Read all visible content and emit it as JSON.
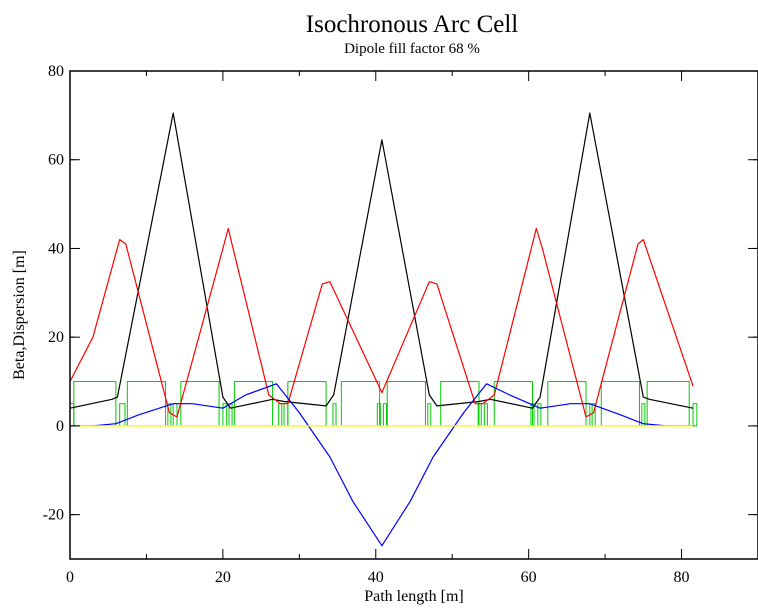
{
  "chart_data": {
    "type": "line",
    "title": "Isochronous Arc Cell",
    "subtitle": "Dipole fill factor 68 %",
    "xlabel": "Path length [m]",
    "ylabel": "Beta,Dispersion [m]",
    "xlim": [
      0,
      90
    ],
    "ylim": [
      -30,
      80
    ],
    "xticks": [
      "0",
      "20",
      "40",
      "60",
      "80"
    ],
    "xtick_values": [
      0,
      20,
      40,
      60,
      80
    ],
    "yticks": [
      "-20",
      "0",
      "20",
      "40",
      "60",
      "80"
    ],
    "ytick_values": [
      -20,
      0,
      20,
      40,
      60,
      80
    ],
    "grid": false,
    "legend": "none",
    "series": [
      {
        "color": "#000000",
        "x": [
          0,
          5.5,
          6.2,
          13.5,
          20,
          21,
          26.5,
          28,
          33.5,
          34.5,
          40.8,
          47,
          48,
          53.5,
          55,
          60.5,
          61.5,
          68,
          75,
          75.8,
          81.5
        ],
        "y": [
          4,
          6,
          6.5,
          70.5,
          6.5,
          4,
          6,
          5.5,
          4.5,
          7,
          64.5,
          7,
          4.5,
          5.5,
          6,
          4,
          6.5,
          70.5,
          6.5,
          6,
          4
        ]
      },
      {
        "color": "#ff0000",
        "x": [
          0,
          3,
          6.5,
          7.3,
          13,
          14,
          20,
          20.7,
          26,
          27.5,
          28.5,
          33,
          34,
          40.8,
          47,
          48,
          53,
          54,
          55.5,
          61,
          61.8,
          67.5,
          68.5,
          74.3,
          75,
          81.5
        ],
        "y": [
          10,
          20,
          42,
          41,
          3,
          2,
          40,
          44.5,
          7,
          5,
          5,
          32,
          32.5,
          7.5,
          32.5,
          32,
          5,
          5,
          7,
          44.5,
          40,
          2,
          3,
          41,
          42,
          9
        ]
      },
      {
        "color": "#0000ff",
        "x": [
          0,
          3,
          6,
          9,
          13.5,
          16,
          20,
          23,
          27,
          30,
          34,
          37,
          40.8,
          44.5,
          47.5,
          51.5,
          54.5,
          57.5,
          61.5,
          65.5,
          68,
          72,
          75,
          78,
          81.5
        ],
        "y": [
          0,
          0,
          0.5,
          2.5,
          5,
          5,
          4,
          7,
          9.5,
          3,
          -7,
          -17,
          -27,
          -17,
          -7,
          3,
          9.5,
          7,
          4,
          5,
          5,
          2.5,
          0.5,
          0,
          0
        ]
      },
      {
        "color": "#ffff00",
        "x": [
          0,
          81.5
        ],
        "y": [
          0,
          0
        ]
      }
    ],
    "magnets": {
      "color": "#00cc00",
      "dipoles": [
        [
          0.5,
          6
        ],
        [
          7.5,
          12.5
        ],
        [
          14.5,
          19.5
        ],
        [
          21.5,
          26.5
        ],
        [
          28.5,
          33.5
        ],
        [
          35.5,
          40.5
        ],
        [
          41.5,
          46.5
        ],
        [
          48.5,
          53.5
        ],
        [
          55.5,
          60.5
        ],
        [
          62.5,
          67.5
        ],
        [
          69.5,
          74.5
        ],
        [
          75.5,
          81
        ]
      ],
      "dipole_height": 10,
      "quads": [
        [
          0,
          0.5
        ],
        [
          6.5,
          7.2
        ],
        [
          12.8,
          13.2
        ],
        [
          13.5,
          14
        ],
        [
          20,
          20.5
        ],
        [
          20.8,
          21.2
        ],
        [
          27.3,
          27.7
        ],
        [
          28,
          28.5
        ],
        [
          34.4,
          34.8
        ],
        [
          40.2,
          40.6
        ],
        [
          41,
          41.4
        ],
        [
          46.8,
          47.2
        ],
        [
          53.4,
          53.8
        ],
        [
          54.2,
          54.6
        ],
        [
          60.3,
          60.7
        ],
        [
          61.2,
          61.6
        ],
        [
          67.5,
          68
        ],
        [
          68.3,
          68.7
        ],
        [
          74.8,
          75.2
        ],
        [
          81.5,
          82
        ]
      ],
      "quad_height": 5
    }
  }
}
